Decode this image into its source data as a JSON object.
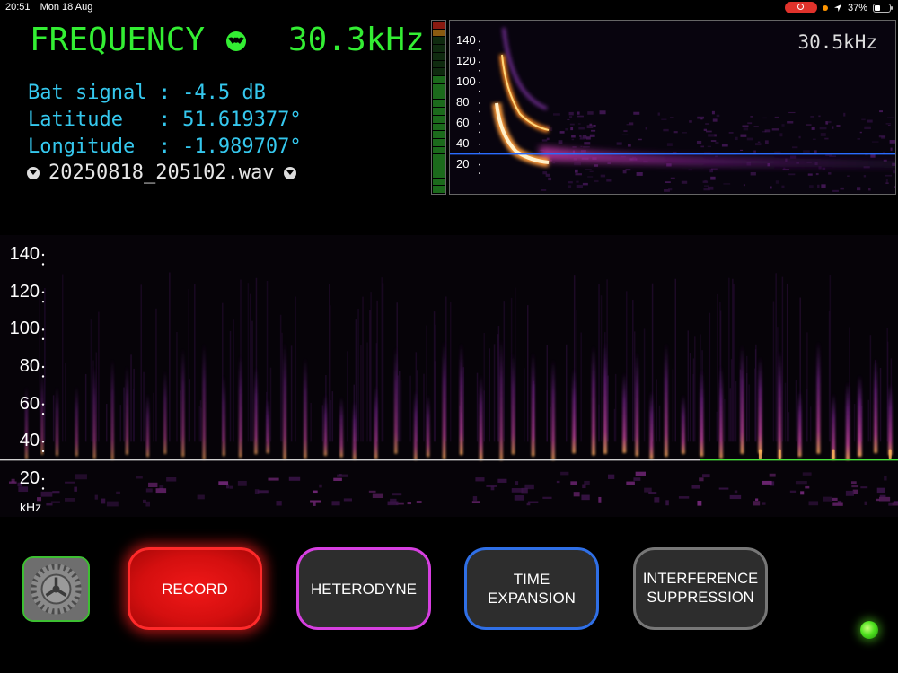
{
  "status_bar": {
    "time": "20:51",
    "date": "Mon 18 Aug",
    "battery_percent": "37%",
    "battery_level": 0.37,
    "icons": [
      "screen-record-icon",
      "location-arrow-icon",
      "battery-icon"
    ]
  },
  "header": {
    "title": "FREQUENCY",
    "title_icon": "bat-icon",
    "frequency": "30.3kHz"
  },
  "info": {
    "bat_signal": "Bat signal : -4.5 dB",
    "latitude": "Latitude   : 51.619377°",
    "longitude": "Longitude  : -1.989707°",
    "filename": "20250818_205102.wav",
    "file_prev_icon": "chevron-down-circle-icon",
    "file_next_icon": "chevron-down-circle-icon"
  },
  "level_meter": {
    "level": 0.7
  },
  "mini_spectrogram": {
    "readout": "30.5kHz",
    "ticks": [
      "140",
      "120",
      "100",
      "80",
      "60",
      "40",
      "20"
    ],
    "marker_khz": 30.5
  },
  "main_spectrogram": {
    "ticks": [
      "140",
      "120",
      "100",
      "80",
      "60",
      "40",
      "20"
    ],
    "unit": "kHz",
    "marker_khz": 30.3
  },
  "buttons": {
    "settings_icon": "gear-icon",
    "record": "RECORD",
    "heterodyne": "HETERODYNE",
    "time_expansion_line1": "TIME",
    "time_expansion_line2": "EXPANSION",
    "interference_line1": "INTERFERENCE",
    "interference_line2": "SUPPRESSION"
  },
  "colors": {
    "accent_green": "#33ee33",
    "info_cyan": "#35c8ee",
    "record_red": "#ff2a2a",
    "heterodyne_magenta": "#d63fe0",
    "time_expansion_blue": "#2f6fe6",
    "status_led": "#4ee01e"
  }
}
